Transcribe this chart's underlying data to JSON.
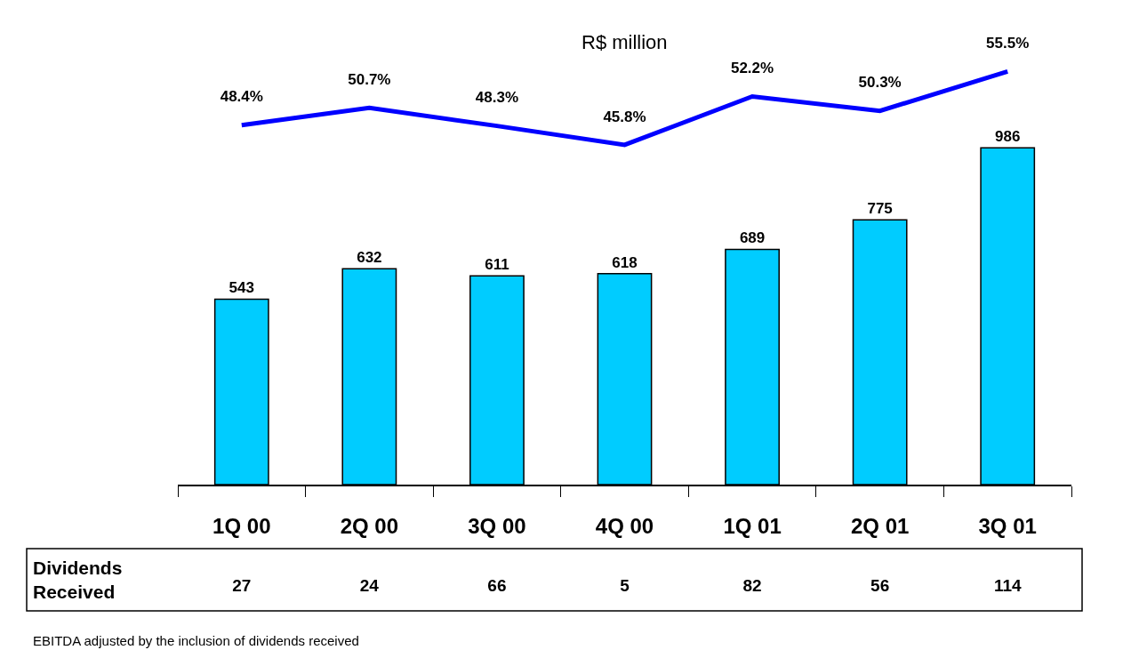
{
  "chart_data": [
    {
      "type": "line",
      "subtitle": "R$ million",
      "categories": [
        null,
        null,
        null,
        null,
        null,
        null,
        null
      ],
      "series": [
        {
          "color": "#0000ff",
          "values": [
            48.4,
            50.7,
            48.3,
            45.8,
            52.2,
            50.3,
            55.5
          ],
          "value_labels": [
            "48.4%",
            "50.7%",
            "48.3%",
            "45.8%",
            "52.2%",
            "50.3%",
            "55.5%"
          ]
        }
      ]
    },
    {
      "type": "bar",
      "categories": [
        "1Q 00",
        "2Q 00",
        "3Q 00",
        "4Q 00",
        "1Q 01",
        "2Q 01",
        "3Q 01"
      ],
      "series": [
        {
          "color": "#00ccff",
          "values": [
            543,
            632,
            611,
            618,
            689,
            775,
            986
          ]
        }
      ],
      "data_labels": true
    },
    {
      "type": "other",
      "categories": [
        null,
        null,
        null,
        null,
        null,
        null,
        null
      ],
      "series": [
        {
          "name": "Dividends Received",
          "values": [
            27,
            24,
            66,
            5,
            82,
            56,
            114
          ]
        }
      ],
      "data_labels": true,
      "annotations": [
        "EBITDA adjusted by the inclusion of dividends received"
      ]
    }
  ]
}
